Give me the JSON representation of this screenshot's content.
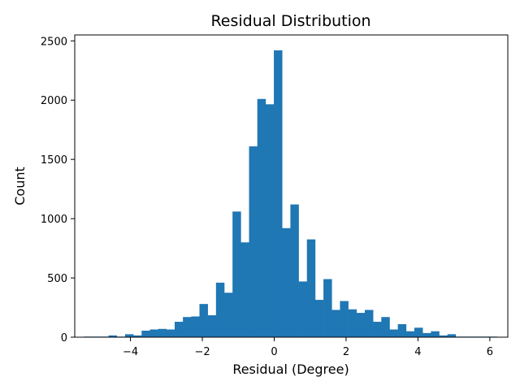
{
  "chart_data": {
    "type": "bar",
    "title": "Residual Distribution",
    "xlabel": "Residual (Degree)",
    "ylabel": "Count",
    "xlim": [
      -5.55,
      6.5
    ],
    "ylim": [
      0,
      2550
    ],
    "xticks": [
      -4,
      -2,
      0,
      2,
      4,
      6
    ],
    "yticks": [
      0,
      500,
      1000,
      1500,
      2000,
      2500
    ],
    "bin_start": -5.3,
    "bin_width": 0.23,
    "values": [
      5,
      5,
      5,
      15,
      5,
      25,
      15,
      55,
      65,
      70,
      65,
      130,
      170,
      175,
      280,
      185,
      460,
      375,
      1060,
      800,
      1610,
      2010,
      1965,
      2420,
      920,
      1120,
      470,
      825,
      315,
      490,
      230,
      305,
      235,
      205,
      230,
      130,
      170,
      65,
      110,
      50,
      80,
      35,
      50,
      15,
      25,
      5,
      5,
      5,
      5,
      5
    ],
    "bar_color": "#1f77b4",
    "grid": false
  }
}
